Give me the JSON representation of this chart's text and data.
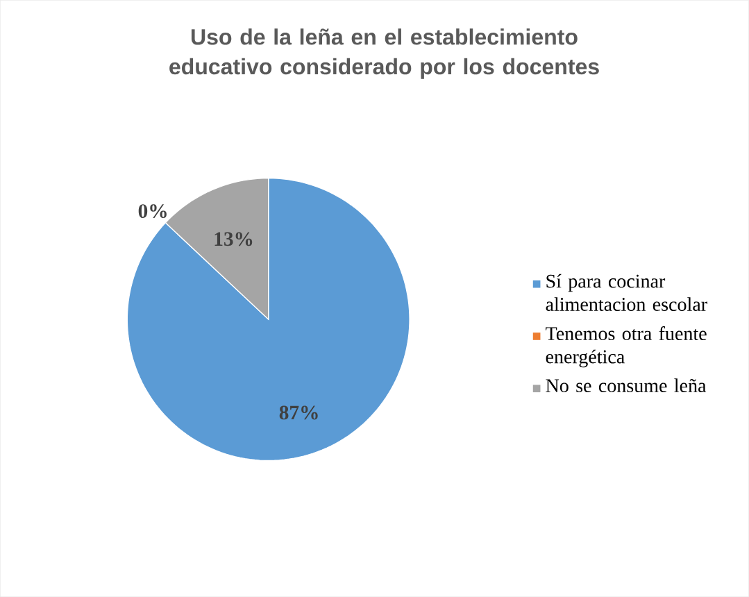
{
  "chart_data": {
    "type": "pie",
    "title": "Uso de la leña en el establecimiento educativo considerado por los docentes",
    "categories": [
      "Sí para cocinar alimentacion escolar",
      "Tenemos otra fuente energética",
      "No se consume leña"
    ],
    "values": [
      87,
      0,
      13
    ],
    "colors": [
      "#5b9bd5",
      "#ed7d31",
      "#a5a5a5"
    ],
    "value_labels": [
      "87%",
      "0%",
      "13%"
    ],
    "legend": "right"
  }
}
